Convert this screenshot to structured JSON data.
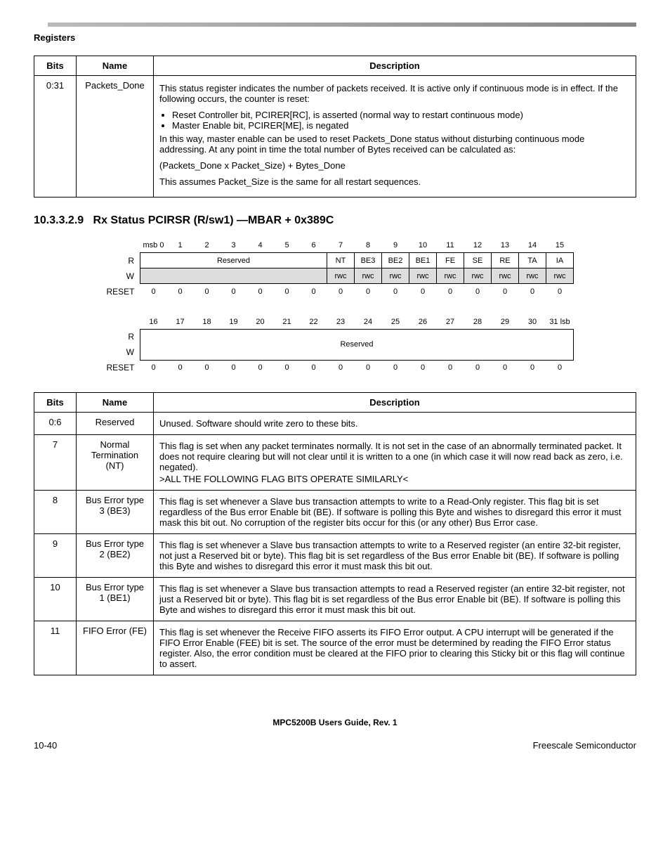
{
  "header": {
    "label": "Registers"
  },
  "table1": {
    "headers": [
      "Bits",
      "Name",
      "Description"
    ],
    "row_bits": "0:31",
    "row_name": "Packets_Done",
    "p1": "This status register indicates the number of packets received. It is active only if continuous mode is in effect. If the following occurs, the counter is reset:",
    "li1": "Reset Controller bit, PCIRER[RC], is asserted (normal way to restart continuous mode)",
    "li2": "Master Enable bit, PCIRER[ME], is negated",
    "p2": "In this way, master enable can be used to reset Packets_Done status without disturbing continuous mode addressing. At any point in time the total number of Bytes received can be calculated as:",
    "p3": "(Packets_Done x Packet_Size) + Bytes_Done",
    "p4": "This assumes Packet_Size is the same for all restart sequences."
  },
  "section": {
    "num": "10.3.3.2.9",
    "title": "Rx Status PCIRSR (R/sw1) —MBAR + 0x389C"
  },
  "bitmap": {
    "top_bits": [
      "msb 0",
      "1",
      "2",
      "3",
      "4",
      "5",
      "6",
      "7",
      "8",
      "9",
      "10",
      "11",
      "12",
      "13",
      "14",
      "15"
    ],
    "r_row": {
      "reserved_label": "Reserved",
      "fields": [
        "NT",
        "BE3",
        "BE2",
        "BE1",
        "FE",
        "SE",
        "RE",
        "TA",
        "IA"
      ]
    },
    "w_row": {
      "rwc": "rwc"
    },
    "reset_label": "RESET",
    "reset_vals": [
      "0",
      "0",
      "0",
      "0",
      "0",
      "0",
      "0",
      "0",
      "0",
      "0",
      "0",
      "0",
      "0",
      "0",
      "0",
      "0"
    ],
    "bot_bits": [
      "16",
      "17",
      "18",
      "19",
      "20",
      "21",
      "22",
      "23",
      "24",
      "25",
      "26",
      "27",
      "28",
      "29",
      "30",
      "31 lsb"
    ],
    "reserved2": "Reserved",
    "row_r": "R",
    "row_w": "W"
  },
  "table2": {
    "headers": [
      "Bits",
      "Name",
      "Description"
    ],
    "rows": [
      {
        "bits": "0:6",
        "name": "Reserved",
        "desc": "Unused. Software should write zero to these bits."
      },
      {
        "bits": "7",
        "name": "Normal Termination (NT)",
        "desc": "This flag is set when any packet terminates normally. It is not set in the case of an abnormally terminated packet. It does not require clearing but will not clear until it is written to a one (in which case it will now read back as zero, i.e. negated).\n>ALL THE FOLLOWING FLAG BITS OPERATE SIMILARLY<"
      },
      {
        "bits": "8",
        "name": "Bus Error type 3 (BE3)",
        "desc": "This flag is set whenever a Slave bus transaction attempts to write to a Read-Only register. This flag bit is set regardless of the Bus error Enable bit (BE). If software is polling this Byte and wishes to disregard this error it must mask this bit out. No corruption of the register bits occur for this (or any other) Bus Error case."
      },
      {
        "bits": "9",
        "name": "Bus Error type 2 (BE2)",
        "desc": "This flag is set whenever a Slave bus transaction attempts to write to a Reserved register (an entire 32-bit register, not just a Reserved bit or byte). This flag bit is set regardless of the Bus error Enable bit (BE). If software is polling this Byte and wishes to disregard this error it must mask this bit out."
      },
      {
        "bits": "10",
        "name": "Bus Error type 1 (BE1)",
        "desc": "This flag is set whenever a Slave bus transaction attempts to read a Reserved register (an entire 32-bit register, not just a Reserved bit or byte). This flag bit is set regardless of the Bus error Enable bit (BE). If software is polling this Byte and wishes to disregard this error it must mask this bit out."
      },
      {
        "bits": "11",
        "name": "FIFO Error (FE)",
        "desc": "This flag is set whenever the Receive FIFO asserts its FIFO Error output. A CPU interrupt will be generated if the FIFO Error Enable (FEE) bit is set. The source of the error must be determined by reading the FIFO Error status register. Also, the error condition must be cleared at the FIFO prior to clearing this Sticky bit or this flag will continue to assert."
      }
    ]
  },
  "footer": {
    "title": "MPC5200B Users Guide, Rev. 1",
    "left": "10-40",
    "right": "Freescale Semiconductor"
  }
}
